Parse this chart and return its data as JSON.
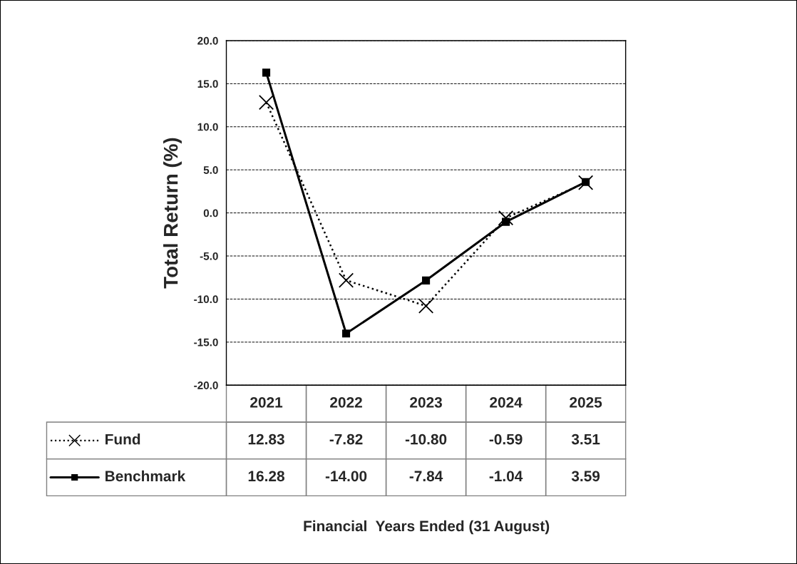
{
  "chart_data": {
    "type": "line",
    "categories": [
      "2021",
      "2022",
      "2023",
      "2024",
      "2025"
    ],
    "series": [
      {
        "name": "Fund",
        "color": "#000000",
        "values": [
          12.83,
          -7.82,
          -10.8,
          -0.59,
          3.51
        ],
        "value_labels": [
          "12.83",
          "-7.82",
          "-10.80",
          "-0.59",
          "3.51"
        ],
        "marker": "cross",
        "line_style": "dotted"
      },
      {
        "name": "Benchmark",
        "color": "#000000",
        "values": [
          16.28,
          -14.0,
          -7.84,
          -1.04,
          3.59
        ],
        "value_labels": [
          "16.28",
          "-14.00",
          "-7.84",
          "-1.04",
          "3.59"
        ],
        "marker": "square",
        "line_style": "solid"
      }
    ],
    "ylabel": "Total Return (%)",
    "annotations": [
      "Financial  Years Ended (31 August)"
    ],
    "ylim": [
      -20,
      20
    ],
    "yticks": [
      {
        "value": -20,
        "label": "-20.0"
      },
      {
        "value": -15,
        "label": "-15.0"
      },
      {
        "value": -10,
        "label": "-10.0"
      },
      {
        "value": -5,
        "label": "-5.0"
      },
      {
        "value": 0,
        "label": "0.0"
      },
      {
        "value": 5,
        "label": "5.0"
      },
      {
        "value": 10,
        "label": "10.0"
      },
      {
        "value": 15,
        "label": "15.0"
      },
      {
        "value": 20,
        "label": "20.0"
      }
    ],
    "grid": "y",
    "legend": "bottom",
    "tick_labels": "y"
  }
}
